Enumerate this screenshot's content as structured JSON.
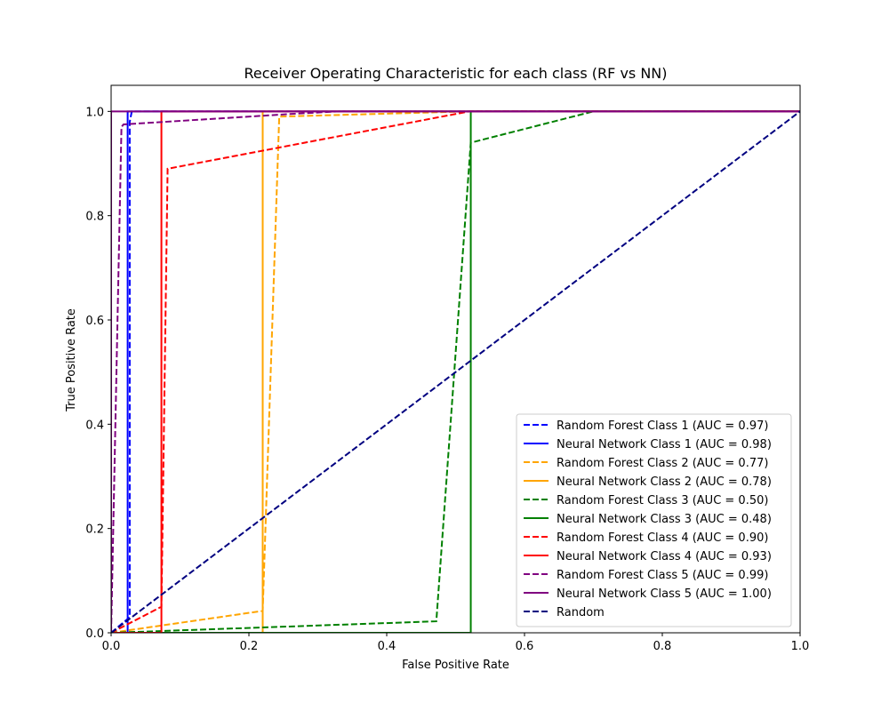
{
  "chart_data": {
    "type": "line",
    "title": "Receiver Operating Characteristic for each class (RF vs NN)",
    "xlabel": "False Positive Rate",
    "ylabel": "True Positive Rate",
    "xlim": [
      0.0,
      1.0
    ],
    "ylim": [
      0.0,
      1.05
    ],
    "xticks": [
      "0.0",
      "0.2",
      "0.4",
      "0.6",
      "0.8",
      "1.0"
    ],
    "yticks": [
      "0.0",
      "0.2",
      "0.4",
      "0.6",
      "0.8",
      "1.0"
    ],
    "legend_position": "lower-right",
    "grid": false,
    "series": [
      {
        "name": "Random Forest Class 1 (AUC = 0.97)",
        "color": "#0000ff",
        "style": "dashed",
        "x": [
          0.0,
          0.027,
          0.027,
          0.03,
          1.0
        ],
        "y": [
          0.0,
          0.03,
          0.98,
          1.0,
          1.0
        ]
      },
      {
        "name": "Neural Network Class 1 (AUC = 0.98)",
        "color": "#0000ff",
        "style": "solid",
        "x": [
          0.0,
          0.024,
          0.024,
          1.0
        ],
        "y": [
          0.0,
          0.0,
          1.0,
          1.0
        ]
      },
      {
        "name": "Random Forest Class 2 (AUC = 0.77)",
        "color": "#ffa500",
        "style": "dashed",
        "x": [
          0.0,
          0.22,
          0.22,
          0.244,
          0.244,
          0.52,
          1.0
        ],
        "y": [
          0.0,
          0.042,
          0.042,
          0.99,
          0.99,
          1.0,
          1.0
        ]
      },
      {
        "name": "Neural Network Class 2 (AUC = 0.78)",
        "color": "#ffa500",
        "style": "solid",
        "x": [
          0.0,
          0.22,
          0.22,
          1.0
        ],
        "y": [
          0.0,
          0.0,
          1.0,
          1.0
        ]
      },
      {
        "name": "Random Forest Class 3 (AUC = 0.50)",
        "color": "#008000",
        "style": "dashed",
        "x": [
          0.0,
          0.472,
          0.522,
          0.522,
          0.7,
          1.0
        ],
        "y": [
          0.0,
          0.022,
          0.94,
          0.94,
          1.0,
          1.0
        ]
      },
      {
        "name": "Neural Network Class 3 (AUC = 0.48)",
        "color": "#008000",
        "style": "solid",
        "x": [
          0.0,
          0.522,
          0.522,
          1.0
        ],
        "y": [
          0.0,
          0.0,
          1.0,
          1.0
        ]
      },
      {
        "name": "Random Forest Class 4 (AUC = 0.90)",
        "color": "#ff0000",
        "style": "dashed",
        "x": [
          0.0,
          0.073,
          0.082,
          0.082,
          0.52,
          1.0
        ],
        "y": [
          0.0,
          0.05,
          0.89,
          0.89,
          1.0,
          1.0
        ]
      },
      {
        "name": "Neural Network Class 4 (AUC = 0.93)",
        "color": "#ff0000",
        "style": "solid",
        "x": [
          0.0,
          0.073,
          0.073,
          1.0
        ],
        "y": [
          0.0,
          0.0,
          1.0,
          1.0
        ]
      },
      {
        "name": "Random Forest Class 5 (AUC = 0.99)",
        "color": "#800080",
        "style": "dashed",
        "x": [
          0.0,
          0.015,
          0.018,
          0.018,
          0.26,
          0.33,
          1.0
        ],
        "y": [
          0.0,
          0.97,
          0.975,
          0.975,
          0.995,
          1.0,
          1.0
        ]
      },
      {
        "name": "Neural Network Class 5 (AUC = 1.00)",
        "color": "#800080",
        "style": "solid",
        "x": [
          0.0,
          0.0,
          1.0
        ],
        "y": [
          0.0,
          1.0,
          1.0
        ]
      },
      {
        "name": "Random",
        "color": "#000080",
        "style": "dashed",
        "x": [
          0.0,
          1.0
        ],
        "y": [
          0.0,
          1.0
        ]
      }
    ]
  }
}
